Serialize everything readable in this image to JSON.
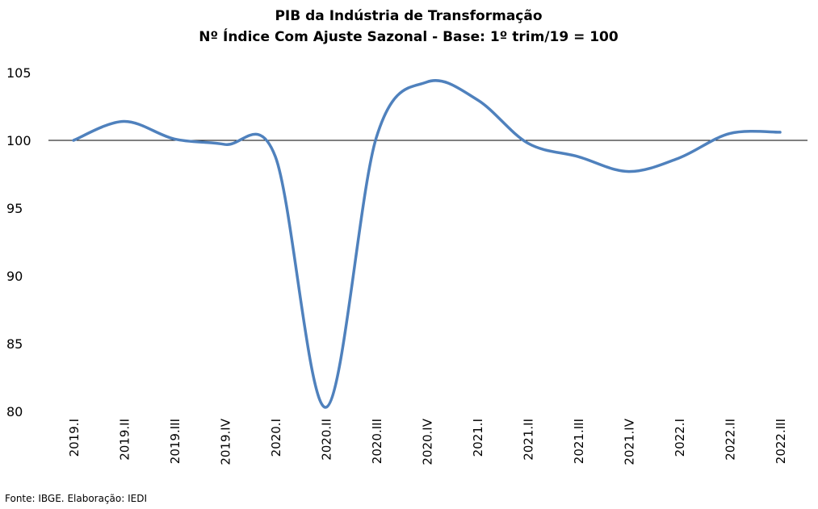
{
  "chart_data": {
    "type": "line",
    "title": "PIB da Indústria de Transformação",
    "subtitle": "Nº Índice Com Ajuste Sazonal - Base: 1º trim/19 = 100",
    "xlabel": "",
    "ylabel": "",
    "categories": [
      "2019.I",
      "2019.II",
      "2019.III",
      "2019.IV",
      "2020.I",
      "2020.II",
      "2020.III",
      "2020.IV",
      "2021.I",
      "2021.II",
      "2021.III",
      "2021.IV",
      "2022.I",
      "2022.II",
      "2022.III"
    ],
    "series": [
      {
        "values": [
          100.0,
          101.4,
          100.1,
          99.7,
          98.8,
          80.3,
          100.2,
          104.3,
          103.0,
          99.8,
          98.8,
          97.7,
          98.7,
          100.5,
          100.6
        ]
      }
    ],
    "ylim": [
      80,
      105
    ],
    "yticks": [
      "80",
      "85",
      "90",
      "95",
      "100",
      "105"
    ],
    "reference_line": 100,
    "grid": false,
    "legend": "none",
    "line_color": "#4f81bd",
    "reference_line_color": "#000000"
  },
  "footer": {
    "source": "Fonte: IBGE. Elaboração: IEDI"
  }
}
